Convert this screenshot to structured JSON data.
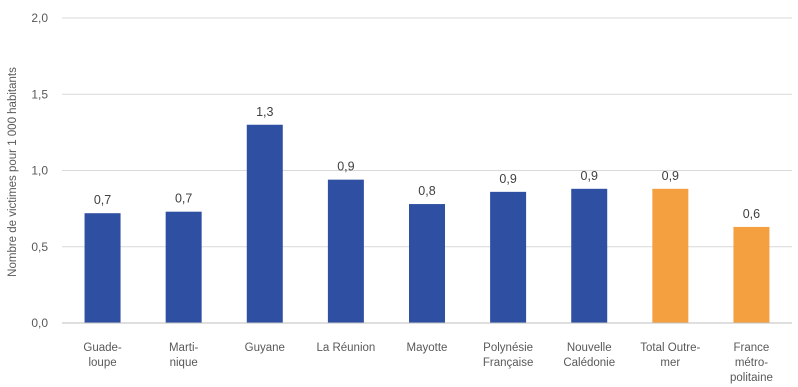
{
  "chart_data": {
    "type": "bar",
    "title": "",
    "xlabel": "",
    "ylabel": "Nombre de victimes pour 1 000 habitants",
    "ylim": [
      0,
      2.0
    ],
    "yticks": [
      "0,0",
      "0,5",
      "1,0",
      "1,5",
      "2,0"
    ],
    "ytick_values": [
      0,
      0.5,
      1.0,
      1.5,
      2.0
    ],
    "grid": true,
    "legend": "none",
    "categories": [
      [
        "Guade-",
        "loupe"
      ],
      [
        "Marti-",
        "nique"
      ],
      [
        "Guyane"
      ],
      [
        "La Réunion"
      ],
      [
        "Mayotte"
      ],
      [
        "Polynésie",
        "Française"
      ],
      [
        "Nouvelle",
        "Calédonie"
      ],
      [
        "Total Outre-",
        "mer"
      ],
      [
        "France",
        "métro-",
        "politaine"
      ]
    ],
    "values": [
      0.72,
      0.73,
      1.3,
      0.94,
      0.78,
      0.86,
      0.88,
      0.88,
      0.63
    ],
    "data_labels": [
      "0,7",
      "0,7",
      "1,3",
      "0,9",
      "0,8",
      "0,9",
      "0,9",
      "0,9",
      "0,6"
    ],
    "colors": [
      "#2f4fa2",
      "#2f4fa2",
      "#2f4fa2",
      "#2f4fa2",
      "#2f4fa2",
      "#2f4fa2",
      "#2f4fa2",
      "#f4a041",
      "#f4a041"
    ]
  }
}
